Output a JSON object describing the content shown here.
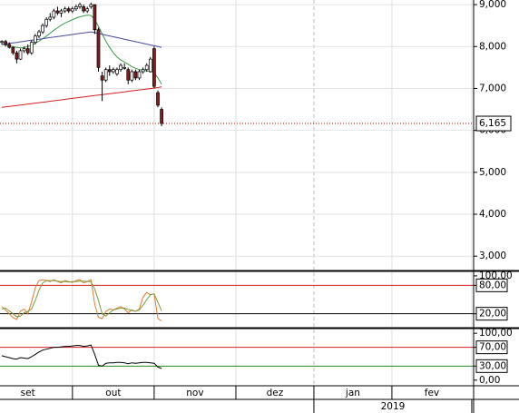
{
  "chart_data": [
    {
      "type": "candlestick",
      "x": [
        0,
        1,
        2,
        3,
        4,
        5,
        6,
        7,
        8,
        9,
        10,
        11,
        12,
        13,
        14,
        15,
        16,
        17,
        18,
        19,
        20,
        21,
        22,
        23,
        24,
        25,
        26,
        27,
        28,
        29,
        30,
        31,
        32,
        33,
        34,
        35,
        36,
        37,
        38,
        39,
        40,
        41,
        42,
        43
      ],
      "open": [
        8100,
        8120,
        8050,
        7980,
        7850,
        7700,
        7900,
        7950,
        7850,
        8100,
        8250,
        8350,
        8500,
        8650,
        8700,
        8850,
        8800,
        8850,
        8900,
        8850,
        8900,
        8950,
        8950,
        8850,
        8950,
        9000,
        8400,
        7300,
        7200,
        7450,
        7400,
        7350,
        7450,
        7500,
        7450,
        7200,
        7400,
        7250,
        7400,
        7450,
        7400,
        7950,
        6900,
        6500
      ],
      "high": [
        8150,
        8160,
        8100,
        8000,
        7900,
        7950,
        8000,
        8050,
        8150,
        8300,
        8400,
        8550,
        8700,
        8800,
        8900,
        8950,
        8900,
        8950,
        8950,
        8950,
        9000,
        9050,
        9000,
        8950,
        9050,
        9000,
        8450,
        7400,
        7500,
        7550,
        7500,
        7500,
        7600,
        7600,
        7500,
        7450,
        7450,
        7450,
        7500,
        7600,
        7750,
        8000,
        6950,
        6550
      ],
      "low": [
        8050,
        8000,
        7950,
        7800,
        7600,
        7680,
        7850,
        7800,
        7800,
        8050,
        8200,
        8300,
        8450,
        8600,
        8650,
        8750,
        8700,
        8800,
        8800,
        8800,
        8850,
        8900,
        8800,
        8800,
        8900,
        8300,
        7400,
        6700,
        7150,
        7300,
        7350,
        7300,
        7400,
        7450,
        7100,
        7150,
        7200,
        7200,
        7350,
        7400,
        7380,
        7000,
        6550,
        6100
      ],
      "close": [
        8120,
        8050,
        7980,
        7850,
        7700,
        7900,
        7950,
        7850,
        8100,
        8250,
        8350,
        8500,
        8650,
        8700,
        8850,
        8800,
        8850,
        8900,
        8850,
        8900,
        8950,
        9000,
        8850,
        8900,
        9000,
        8400,
        7500,
        7200,
        7450,
        7400,
        7450,
        7450,
        7550,
        7500,
        7200,
        7400,
        7250,
        7400,
        7450,
        7550,
        7700,
        7050,
        6600,
        6165
      ],
      "up_color": "#ffffff",
      "down_color": "#8b1a1a",
      "overlays": [
        {
          "color": "#3a9a4a",
          "values": [
            8050,
            8040,
            8020,
            8000,
            7980,
            7970,
            7980,
            8000,
            8030,
            8080,
            8130,
            8190,
            8250,
            8320,
            8390,
            8450,
            8510,
            8560,
            8600,
            8640,
            8680,
            8710,
            8730,
            8750,
            8740,
            8650,
            8480,
            8300,
            8130,
            7980,
            7850,
            7750,
            7680,
            7630,
            7580,
            7520,
            7480,
            7450,
            7430,
            7420,
            7410,
            7380,
            7250,
            7100
          ]
        },
        {
          "color": "#4a4a9a",
          "values": [
            8050,
            8063,
            8075,
            8088,
            8100,
            8113,
            8125,
            8138,
            8150,
            8163,
            8175,
            8188,
            8200,
            8213,
            8225,
            8238,
            8250,
            8263,
            8275,
            8288,
            8300,
            8313,
            8325,
            8338,
            8350,
            8331,
            8311,
            8292,
            8272,
            8253,
            8233,
            8214,
            8194,
            8175,
            8155,
            8136,
            8116,
            8097,
            8077,
            8058,
            8038,
            8019,
            7999,
            7980
          ]
        },
        {
          "color": "#d02020",
          "values": [
            6550,
            6561,
            6572,
            6584,
            6595,
            6606,
            6617,
            6628,
            6640,
            6651,
            6662,
            6673,
            6684,
            6696,
            6707,
            6718,
            6729,
            6740,
            6752,
            6763,
            6774,
            6785,
            6796,
            6808,
            6819,
            6830,
            6841,
            6852,
            6864,
            6875,
            6886,
            6897,
            6908,
            6920,
            6931,
            6942,
            6953,
            6964,
            6976,
            6987,
            6998,
            7009,
            7020,
            7040
          ]
        }
      ],
      "last": {
        "value": 6165,
        "label": "6,165",
        "color": "#c00000"
      },
      "xlim": [
        -0.5,
        127
      ],
      "ylim": [
        2680,
        9110
      ],
      "yticks": [
        {
          "value": 3000,
          "label": "3,000"
        },
        {
          "value": 4000,
          "label": "4,000"
        },
        {
          "value": 5000,
          "label": "5,000"
        },
        {
          "value": 6000,
          "label": "6,000"
        },
        {
          "value": 7000,
          "label": "7,000"
        },
        {
          "value": 8000,
          "label": "8,000"
        },
        {
          "value": 9000,
          "label": "9,000"
        }
      ],
      "grid": true
    },
    {
      "type": "line",
      "series": [
        {
          "color": "#e07a30",
          "values": [
            35,
            28,
            20,
            12,
            8,
            25,
            30,
            20,
            45,
            75,
            90,
            92,
            90,
            88,
            92,
            88,
            85,
            90,
            88,
            86,
            90,
            92,
            85,
            88,
            92,
            40,
            12,
            10,
            25,
            30,
            28,
            32,
            35,
            30,
            22,
            28,
            25,
            30,
            55,
            65,
            60,
            62,
            10,
            5
          ]
        },
        {
          "color": "#7a9a3a",
          "values": [
            30,
            32,
            26,
            20,
            14,
            15,
            22,
            25,
            30,
            48,
            70,
            85,
            90,
            90,
            90,
            89,
            88,
            88,
            87,
            88,
            88,
            89,
            89,
            88,
            88,
            72,
            48,
            20,
            15,
            22,
            28,
            30,
            32,
            32,
            29,
            27,
            25,
            28,
            38,
            50,
            60,
            62,
            44,
            26
          ]
        }
      ],
      "ylim": [
        -7.5,
        107.5
      ],
      "yticks": [
        {
          "value": 20,
          "label": "20,00"
        },
        {
          "value": 80,
          "label": "80,00"
        },
        {
          "value": 100,
          "label": "100,00"
        }
      ],
      "levels": [
        {
          "value": 80,
          "color": "#d02020"
        },
        {
          "value": 20,
          "color": "#000000"
        }
      ]
    },
    {
      "type": "line",
      "series": [
        {
          "color": "#000000",
          "values": [
            52,
            50,
            48,
            46,
            45,
            48,
            47,
            46,
            50,
            55,
            60,
            64,
            66,
            68,
            70,
            70,
            71,
            72,
            72,
            73,
            74,
            74,
            72,
            73,
            75,
            55,
            32,
            30,
            36,
            37,
            37,
            38,
            38,
            37,
            35,
            37,
            36,
            37,
            38,
            38,
            37,
            36,
            28,
            25
          ]
        }
      ],
      "ylim": [
        -10,
        108
      ],
      "yticks": [
        {
          "value": 0,
          "label": "0,00"
        },
        {
          "value": 30,
          "label": "30,00"
        },
        {
          "value": 70,
          "label": "70,00"
        },
        {
          "value": 100,
          "label": "100,00"
        }
      ],
      "levels": [
        {
          "value": 70,
          "color": "#d02020"
        },
        {
          "value": 30,
          "color": "#2a8a2a"
        }
      ]
    }
  ],
  "x_axis": {
    "months": [
      "set",
      "out",
      "nov",
      "dez",
      "jan",
      "fev"
    ],
    "month_starts": [
      -5,
      19,
      41,
      63,
      84,
      105,
      126.5
    ],
    "year": "2019",
    "year_start": 84
  }
}
